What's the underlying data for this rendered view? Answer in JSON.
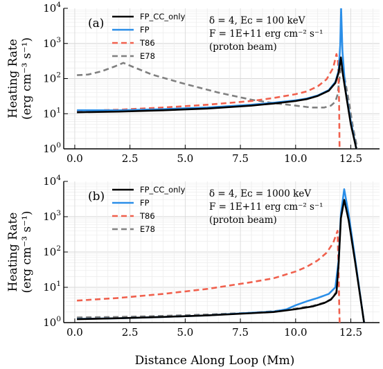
{
  "chart_data": [
    {
      "type": "line",
      "panel_label": "(a)",
      "ylabel_lines": [
        "Heating Rate",
        "(erg cm⁻³ s⁻¹)"
      ],
      "xlabel": "",
      "xlim": [
        -0.5,
        13.8
      ],
      "ylim": [
        1,
        10000
      ],
      "y_scale": "log",
      "x_ticks": [
        "0.0",
        "2.5",
        "5.0",
        "7.5",
        "10.0",
        "12.5"
      ],
      "y_ticks": [
        {
          "base": "10",
          "exp": "0"
        },
        {
          "base": "10",
          "exp": "1"
        },
        {
          "base": "10",
          "exp": "2"
        },
        {
          "base": "10",
          "exp": "3"
        },
        {
          "base": "10",
          "exp": "4"
        }
      ],
      "grid": true,
      "legend_position": "top-left",
      "annotation_lines": [
        "δ = 4, Eᴄ = 100 keV",
        "F = 1E+11 erg cm⁻² s⁻¹",
        "(proton beam)"
      ],
      "series": [
        {
          "name": "FP_CC_only",
          "color": "#000000",
          "dash": "solid",
          "x": [
            0.1,
            2,
            4,
            6,
            8,
            9,
            10,
            10.5,
            11,
            11.5,
            11.8,
            11.95,
            12.05,
            12.15,
            12.3,
            12.5,
            12.75
          ],
          "y": [
            11,
            11.5,
            12.5,
            14,
            17,
            19.5,
            23,
            26,
            32,
            45,
            75,
            150,
            400,
            120,
            30,
            5,
            1
          ]
        },
        {
          "name": "FP",
          "color": "#2a8ee8",
          "dash": "solid",
          "x": [
            0.1,
            2,
            4,
            6,
            8,
            9,
            10,
            10.5,
            11,
            11.5,
            11.8,
            11.95,
            12.02,
            12.06,
            12.12,
            12.25,
            12.5,
            12.75
          ],
          "y": [
            12.5,
            12.5,
            13.5,
            15,
            18,
            20.5,
            24,
            27,
            33,
            47,
            80,
            170,
            900,
            10000,
            600,
            50,
            6,
            1
          ]
        },
        {
          "name": "T86",
          "color": "#f0604d",
          "dash": "dashed",
          "x": [
            0.1,
            2,
            4,
            6,
            8,
            9,
            10,
            10.5,
            11,
            11.4,
            11.7,
            11.85,
            11.92,
            11.97,
            11.99
          ],
          "y": [
            12,
            13,
            15,
            18,
            23,
            28,
            36,
            43,
            60,
            95,
            200,
            500,
            300,
            20,
            1
          ]
        },
        {
          "name": "E78",
          "color": "#808080",
          "dash": "dashed",
          "x": [
            0.1,
            0.6,
            1.2,
            1.8,
            2.2,
            2.6,
            3.5,
            5,
            6.5,
            8,
            9,
            10,
            10.7,
            11.3,
            11.6,
            11.8,
            11.9,
            12,
            12.1,
            12.2,
            12.4,
            12.6,
            12.8
          ],
          "y": [
            125,
            130,
            160,
            220,
            280,
            220,
            130,
            70,
            40,
            25,
            20,
            17,
            15,
            15,
            17,
            22,
            35,
            120,
            300,
            120,
            25,
            4,
            1
          ]
        }
      ]
    },
    {
      "type": "line",
      "panel_label": "(b)",
      "ylabel_lines": [
        "Heating Rate",
        "(erg cm⁻³ s⁻¹)"
      ],
      "xlabel": "Distance Along Loop (Mm)",
      "xlim": [
        -0.5,
        13.8
      ],
      "ylim": [
        1,
        10000
      ],
      "y_scale": "log",
      "x_ticks": [
        "0.0",
        "2.5",
        "5.0",
        "7.5",
        "10.0",
        "12.5"
      ],
      "y_ticks": [
        {
          "base": "10",
          "exp": "0"
        },
        {
          "base": "10",
          "exp": "1"
        },
        {
          "base": "10",
          "exp": "2"
        },
        {
          "base": "10",
          "exp": "3"
        },
        {
          "base": "10",
          "exp": "4"
        }
      ],
      "grid": true,
      "legend_position": "top-left",
      "annotation_lines": [
        "δ = 4, Eᴄ = 1000 keV",
        "F = 1E+11 erg cm⁻² s⁻¹",
        "(proton beam)"
      ],
      "series": [
        {
          "name": "FP_CC_only",
          "color": "#000000",
          "dash": "solid",
          "x": [
            0.1,
            2,
            4,
            6,
            8,
            9,
            10,
            10.8,
            11.3,
            11.6,
            11.85,
            11.95,
            12.05,
            12.2,
            12.4,
            12.7,
            13.1
          ],
          "y": [
            1.25,
            1.33,
            1.45,
            1.6,
            1.85,
            2,
            2.4,
            2.9,
            3.6,
            4.5,
            7,
            50,
            900,
            3000,
            800,
            50,
            1
          ]
        },
        {
          "name": "FP",
          "color": "#2a8ee8",
          "dash": "solid",
          "x": [
            0.1,
            2,
            4,
            6,
            8,
            9,
            9.6,
            10,
            10.5,
            11,
            11.5,
            11.8,
            11.95,
            12.05,
            12.2,
            12.4,
            12.7,
            13.1
          ],
          "y": [
            1.27,
            1.33,
            1.45,
            1.6,
            1.9,
            2.05,
            2.4,
            3.1,
            4,
            5,
            6.5,
            10,
            60,
            1200,
            6000,
            1200,
            60,
            1
          ]
        },
        {
          "name": "T86",
          "color": "#f0604d",
          "dash": "dashed",
          "x": [
            0.1,
            2,
            4,
            6,
            8,
            9,
            10,
            10.5,
            11,
            11.4,
            11.7,
            11.9,
            11.95,
            11.98,
            11.995
          ],
          "y": [
            4.2,
            5,
            6.5,
            9,
            14,
            18,
            28,
            38,
            58,
            95,
            180,
            400,
            20,
            2,
            1
          ]
        },
        {
          "name": "E78",
          "color": "#808080",
          "dash": "dashed",
          "x": [
            0.1,
            2,
            4,
            6,
            8,
            9,
            10,
            10.8,
            11.3,
            11.6,
            11.85,
            11.95,
            12.05,
            12.2,
            12.4,
            12.7,
            13.1
          ],
          "y": [
            1.4,
            1.45,
            1.55,
            1.7,
            1.9,
            2.1,
            2.5,
            3,
            3.7,
            4.6,
            7.5,
            60,
            1000,
            3300,
            850,
            55,
            1
          ]
        }
      ]
    }
  ]
}
